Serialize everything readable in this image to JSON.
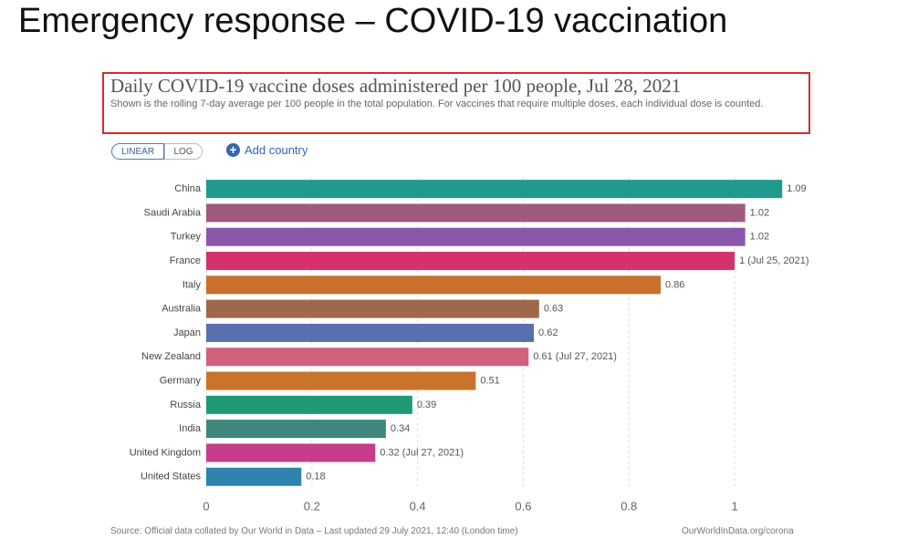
{
  "slide_title": "Emergency response – COVID-19 vaccination",
  "chart_data": {
    "type": "hbar",
    "title": "Daily COVID-19 vaccine doses administered per 100 people, Jul 28, 2021",
    "subtitle": "Shown is the rolling 7-day average per 100 people in the total population. For vaccines that require multiple doses, each individual dose is counted.",
    "scale_buttons": [
      "LINEAR",
      "LOG"
    ],
    "add_country": "Add country",
    "categories": [
      "China",
      "Saudi Arabia",
      "Turkey",
      "France",
      "Italy",
      "Australia",
      "Japan",
      "New Zealand",
      "Germany",
      "Russia",
      "India",
      "United Kingdom",
      "United States"
    ],
    "values": [
      1.09,
      1.02,
      1.02,
      1,
      0.86,
      0.63,
      0.62,
      0.61,
      0.51,
      0.39,
      0.34,
      0.32,
      0.18
    ],
    "value_labels": [
      "1.09",
      "1.02",
      "1.02",
      "1 (Jul 25, 2021)",
      "0.86",
      "0.63",
      "0.62",
      "0.61 (Jul 27, 2021)",
      "0.51",
      "0.39",
      "0.34",
      "0.32 (Jul 27, 2021)",
      "0.18"
    ],
    "colors": [
      "#1f9a8c",
      "#a05a80",
      "#8a57ad",
      "#d5316c",
      "#c8702c",
      "#a0684b",
      "#5a6fae",
      "#d3607c",
      "#c9742b",
      "#1f9a75",
      "#3e877c",
      "#c63d8c",
      "#2f83ad"
    ],
    "xlim": [
      0,
      1.1
    ],
    "xticks": [
      0,
      0.2,
      0.4,
      0.6,
      0.8,
      1
    ],
    "grid": true,
    "source": "Source: Official data collated by Our World in Data – Last updated 29 July 2021, 12:40 (London time)",
    "source_url": "OurWorldInData.org/corona"
  }
}
